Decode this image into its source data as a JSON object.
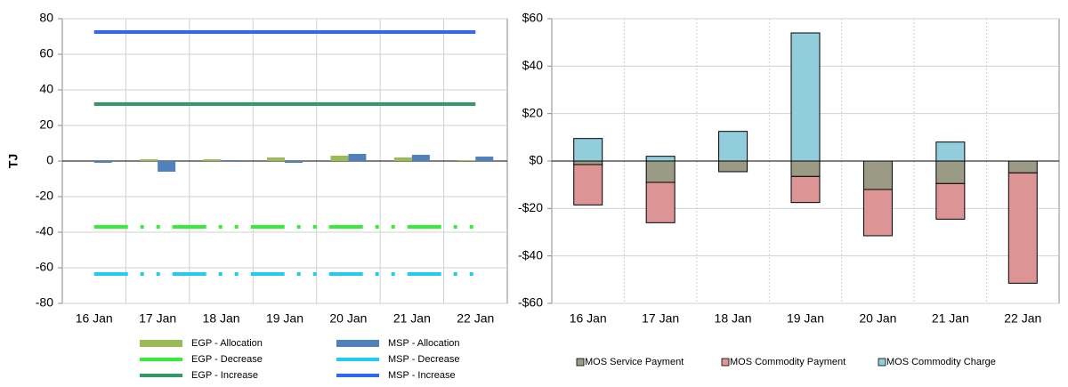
{
  "chart_data": [
    {
      "type": "bar",
      "categories": [
        "16 Jan",
        "17 Jan",
        "18 Jan",
        "19 Jan",
        "20 Jan",
        "21 Jan",
        "22 Jan"
      ],
      "ylabel": "TJ",
      "ylim": [
        -80,
        80
      ],
      "yticks": [
        -80,
        -60,
        -40,
        -20,
        0,
        20,
        40,
        60,
        80
      ],
      "grid": true,
      "series": [
        {
          "name": "EGP - Allocation",
          "type": "bar",
          "color": "#9bbb59",
          "values": [
            0,
            1,
            1,
            2,
            3,
            2,
            0.5
          ]
        },
        {
          "name": "MSP - Allocation",
          "type": "bar",
          "color": "#4f81bd",
          "values": [
            -1,
            -6,
            0.5,
            -1,
            4,
            3.5,
            2.5
          ]
        },
        {
          "name": "EGP - Decrease",
          "type": "line",
          "line_style": "dash-dot",
          "color": "#33ee33",
          "values": [
            -37,
            -37,
            -37,
            -37,
            -37,
            -37,
            -37
          ]
        },
        {
          "name": "MSP - Decrease",
          "type": "line",
          "line_style": "dash-dot",
          "color": "#22ccee",
          "values": [
            -63.5,
            -63.5,
            -63.5,
            -63.5,
            -63.5,
            -63.5,
            -63.5
          ]
        },
        {
          "name": "EGP - Increase",
          "type": "line",
          "line_style": "solid",
          "color": "#339966",
          "values": [
            32,
            32,
            32,
            32,
            32,
            32,
            32
          ]
        },
        {
          "name": "MSP - Increase",
          "type": "line",
          "line_style": "solid",
          "color": "#3366ee",
          "values": [
            72.5,
            72.5,
            72.5,
            72.5,
            72.5,
            72.5,
            72.5
          ]
        }
      ]
    },
    {
      "type": "stacked_bar",
      "categories": [
        "16 Jan",
        "17 Jan",
        "18 Jan",
        "19 Jan",
        "20 Jan",
        "21 Jan",
        "22 Jan"
      ],
      "ylim": [
        -60,
        60
      ],
      "yticks": [
        {
          "value": -60,
          "label": "-$60"
        },
        {
          "value": -40,
          "label": "-$40"
        },
        {
          "value": -20,
          "label": "-$20"
        },
        {
          "value": 0,
          "label": "$0"
        },
        {
          "value": 20,
          "label": "$20"
        },
        {
          "value": 40,
          "label": "$40"
        },
        {
          "value": 60,
          "label": "$60"
        }
      ],
      "grid": true,
      "series": [
        {
          "name": "MOS Service Payment",
          "color": "#9b9b85",
          "values": [
            -1.5,
            -9,
            -4.5,
            -6.5,
            -12,
            -9.5,
            -5
          ]
        },
        {
          "name": "MOS Commodity Payment",
          "color": "#dc9494",
          "values": [
            -17,
            -17,
            0,
            -11,
            -19.5,
            -15,
            -46.5
          ]
        },
        {
          "name": "MOS Commodity Charge",
          "color": "#92cddc",
          "values": [
            9.5,
            2,
            12.5,
            54,
            0,
            8,
            0
          ]
        }
      ]
    }
  ]
}
